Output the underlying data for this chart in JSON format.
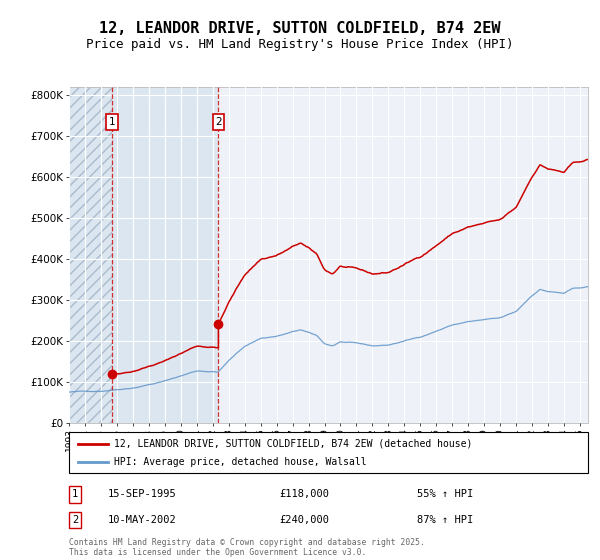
{
  "title": "12, LEANDOR DRIVE, SUTTON COLDFIELD, B74 2EW",
  "subtitle": "Price paid vs. HM Land Registry's House Price Index (HPI)",
  "ylabel_ticks": [
    "£0",
    "£100K",
    "£200K",
    "£300K",
    "£400K",
    "£500K",
    "£600K",
    "£700K",
    "£800K"
  ],
  "ytick_values": [
    0,
    100000,
    200000,
    300000,
    400000,
    500000,
    600000,
    700000,
    800000
  ],
  "ylim": [
    0,
    820000
  ],
  "xlim_start": 1993.0,
  "xlim_end": 2025.5,
  "sale1_date": 1995.708,
  "sale1_price": 118000,
  "sale1_label": "1",
  "sale2_date": 2002.358,
  "sale2_price": 240000,
  "sale2_label": "2",
  "legend_line1": "12, LEANDOR DRIVE, SUTTON COLDFIELD, B74 2EW (detached house)",
  "legend_line2": "HPI: Average price, detached house, Walsall",
  "footnote": "Contains HM Land Registry data © Crown copyright and database right 2025.\nThis data is licensed under the Open Government Licence v3.0.",
  "property_color": "#cc0000",
  "hpi_color": "#6699cc",
  "hatch_color": "#dce6f0",
  "background_color": "#eef2f8",
  "grid_color": "#ffffff",
  "title_fontsize": 11,
  "subtitle_fontsize": 9,
  "axis_fontsize": 7.5
}
